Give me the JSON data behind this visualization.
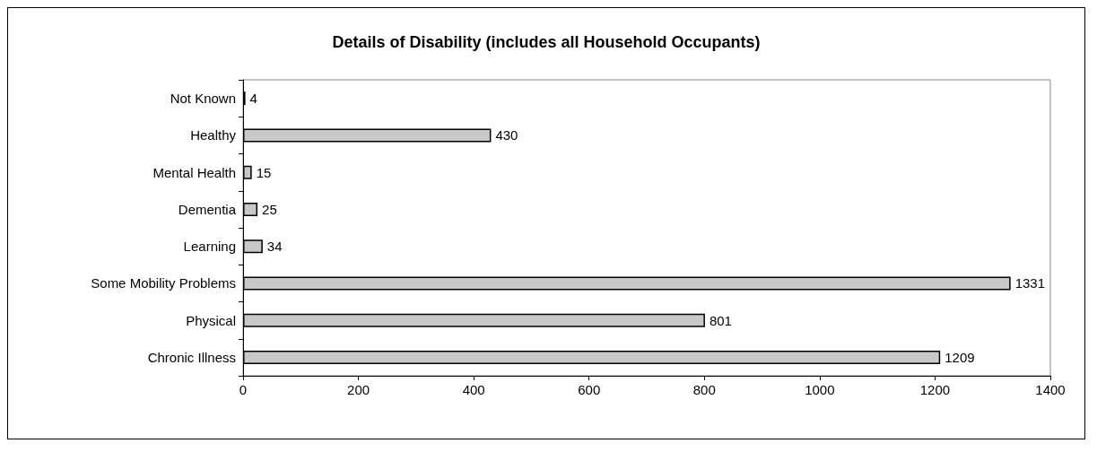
{
  "chart_data": {
    "type": "bar",
    "orientation": "horizontal",
    "title": "Details of Disability (includes all Household Occupants)",
    "categories": [
      "Not Known",
      "Healthy",
      "Mental Health",
      "Dementia",
      "Learning",
      "Some Mobility Problems",
      "Physical",
      "Chronic Illness"
    ],
    "values": [
      4,
      430,
      15,
      25,
      34,
      1331,
      801,
      1209
    ],
    "color": "#c8c8c8",
    "xlim": [
      0,
      1400
    ],
    "xticks": [
      0,
      200,
      400,
      600,
      800,
      1000,
      1200,
      1400
    ],
    "grid": false,
    "data_labels": true
  }
}
